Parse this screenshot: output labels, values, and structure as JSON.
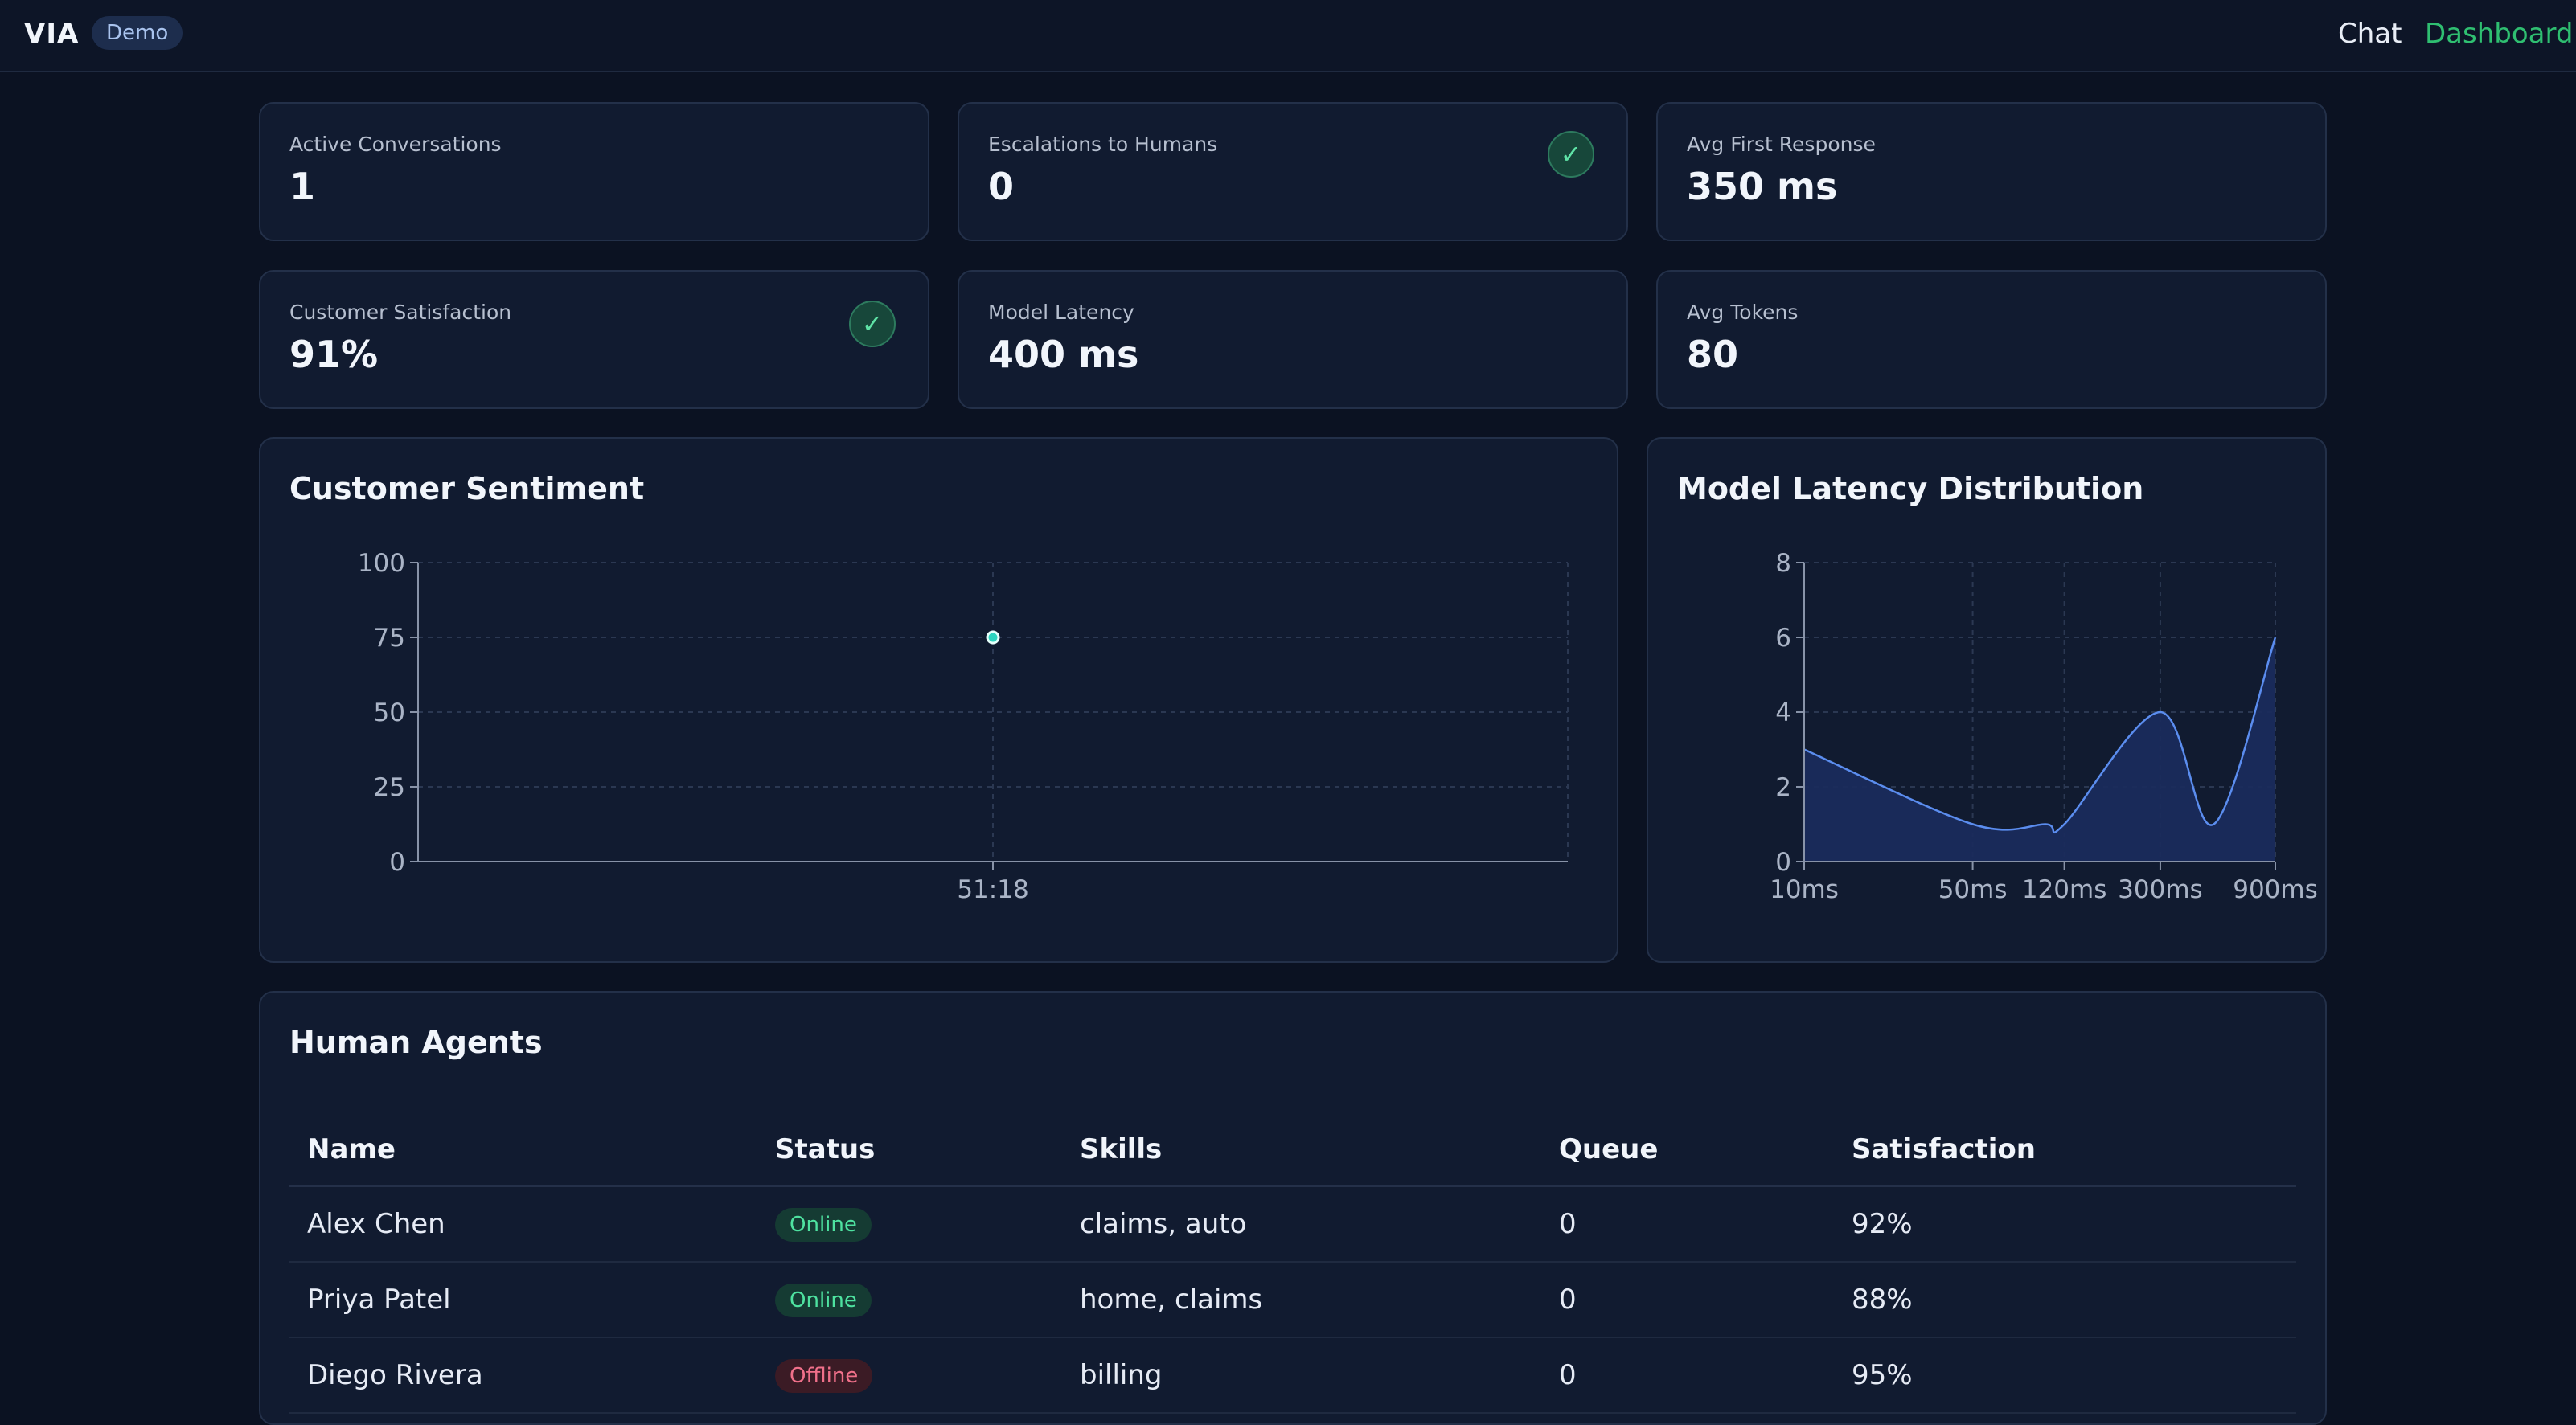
{
  "header": {
    "brand": "VIA",
    "badge": "Demo",
    "nav": [
      {
        "label": "Chat",
        "active": false
      },
      {
        "label": "Dashboard",
        "active": true
      }
    ]
  },
  "kpis": [
    {
      "label": "Active Conversations",
      "value": "1",
      "check": false
    },
    {
      "label": "Escalations to Humans",
      "value": "0",
      "check": true
    },
    {
      "label": "Avg First Response",
      "value": "350 ms",
      "check": false
    },
    {
      "label": "Customer Satisfaction",
      "value": "91%",
      "check": true
    },
    {
      "label": "Model Latency",
      "value": "400 ms",
      "check": false
    },
    {
      "label": "Avg Tokens",
      "value": "80",
      "check": false
    }
  ],
  "check_glyph": "✓",
  "colors": {
    "accent_green": "#2fbf71",
    "sentiment_point": "#2dd4bf",
    "latency_line": "#5b8def",
    "latency_fill": "#1a2b5c"
  },
  "chart_data": [
    {
      "type": "scatter",
      "title": "Customer Sentiment",
      "x": [
        "51:18"
      ],
      "y": [
        75
      ],
      "ylim": [
        0,
        100
      ],
      "yticks": [
        0,
        25,
        50,
        75,
        100
      ],
      "xlabel": "",
      "ylabel": "",
      "grid": true
    },
    {
      "type": "area",
      "title": "Model Latency Distribution",
      "x": [
        10,
        50,
        100,
        120,
        300,
        500,
        900
      ],
      "y": [
        3,
        1,
        1,
        1,
        4,
        1,
        6
      ],
      "xticks": [
        "10ms",
        "50ms",
        "120ms",
        "300ms",
        "900ms"
      ],
      "ylim": [
        0,
        8
      ],
      "yticks": [
        0,
        2,
        4,
        6,
        8
      ],
      "xlabel": "",
      "ylabel": "",
      "grid": true
    }
  ],
  "agents": {
    "title": "Human Agents",
    "columns": [
      "Name",
      "Status",
      "Skills",
      "Queue",
      "Satisfaction"
    ],
    "rows": [
      {
        "name": "Alex Chen",
        "status": "Online",
        "skills": "claims, auto",
        "queue": "0",
        "satisfaction": "92%"
      },
      {
        "name": "Priya Patel",
        "status": "Online",
        "skills": "home, claims",
        "queue": "0",
        "satisfaction": "88%"
      },
      {
        "name": "Diego Rivera",
        "status": "Offline",
        "skills": "billing",
        "queue": "0",
        "satisfaction": "95%"
      }
    ]
  }
}
